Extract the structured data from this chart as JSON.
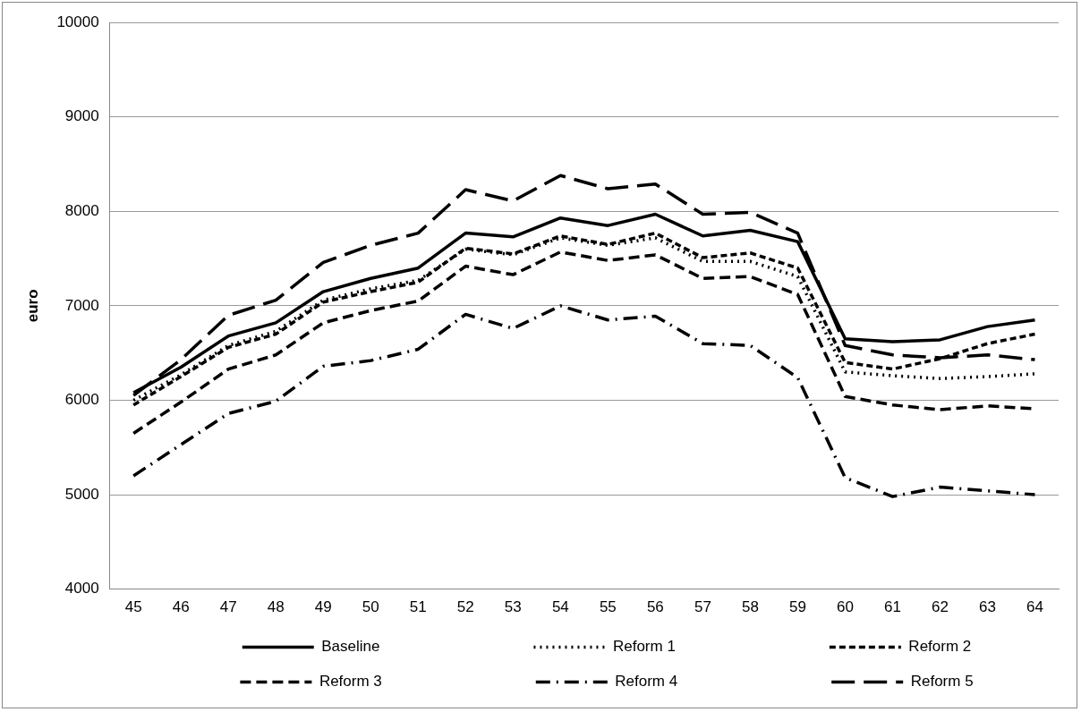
{
  "chart_data": {
    "type": "line",
    "ylabel": "euro",
    "categories": [
      "45",
      "46",
      "47",
      "48",
      "49",
      "50",
      "51",
      "52",
      "53",
      "54",
      "55",
      "56",
      "57",
      "58",
      "59",
      "60",
      "61",
      "62",
      "63",
      "64"
    ],
    "ylim": [
      4000,
      10000
    ],
    "yticks": [
      4000,
      5000,
      6000,
      7000,
      8000,
      9000,
      10000
    ],
    "grid": "y",
    "legend": "bottom",
    "marker": "none",
    "series": [
      {
        "name": "Baseline",
        "color": "#000000",
        "line_style": "solid",
        "values": [
          6080,
          6350,
          6680,
          6820,
          7150,
          7290,
          7400,
          7770,
          7730,
          7930,
          7850,
          7970,
          7740,
          7800,
          7680,
          6650,
          6620,
          6640,
          6780,
          6850
        ]
      },
      {
        "name": "Reform 1",
        "color": "#000000",
        "line_style": "dotted",
        "values": [
          6000,
          6270,
          6580,
          6730,
          7060,
          7180,
          7270,
          7600,
          7540,
          7720,
          7640,
          7720,
          7470,
          7470,
          7310,
          6300,
          6260,
          6230,
          6250,
          6280
        ]
      },
      {
        "name": "Reform 2",
        "color": "#000000",
        "line_style": "shortdash",
        "values": [
          5950,
          6250,
          6560,
          6700,
          7040,
          7150,
          7250,
          7610,
          7550,
          7740,
          7650,
          7770,
          7510,
          7560,
          7400,
          6400,
          6330,
          6440,
          6600,
          6700
        ]
      },
      {
        "name": "Reform 3",
        "color": "#000000",
        "line_style": "dashed",
        "values": [
          5650,
          5980,
          6330,
          6480,
          6820,
          6950,
          7050,
          7420,
          7330,
          7570,
          7480,
          7540,
          7290,
          7310,
          7120,
          6040,
          5950,
          5900,
          5940,
          5910
        ]
      },
      {
        "name": "Reform 4",
        "color": "#000000",
        "line_style": "dashdot",
        "values": [
          5200,
          5530,
          5860,
          5990,
          6360,
          6420,
          6540,
          6910,
          6760,
          7000,
          6850,
          6890,
          6600,
          6580,
          6240,
          5180,
          4980,
          5080,
          5040,
          5000
        ]
      },
      {
        "name": "Reform 5",
        "color": "#000000",
        "line_style": "longdash",
        "values": [
          6050,
          6430,
          6900,
          7060,
          7460,
          7640,
          7770,
          8230,
          8110,
          8380,
          8240,
          8290,
          7970,
          7990,
          7770,
          6580,
          6480,
          6450,
          6480,
          6430
        ]
      }
    ]
  }
}
